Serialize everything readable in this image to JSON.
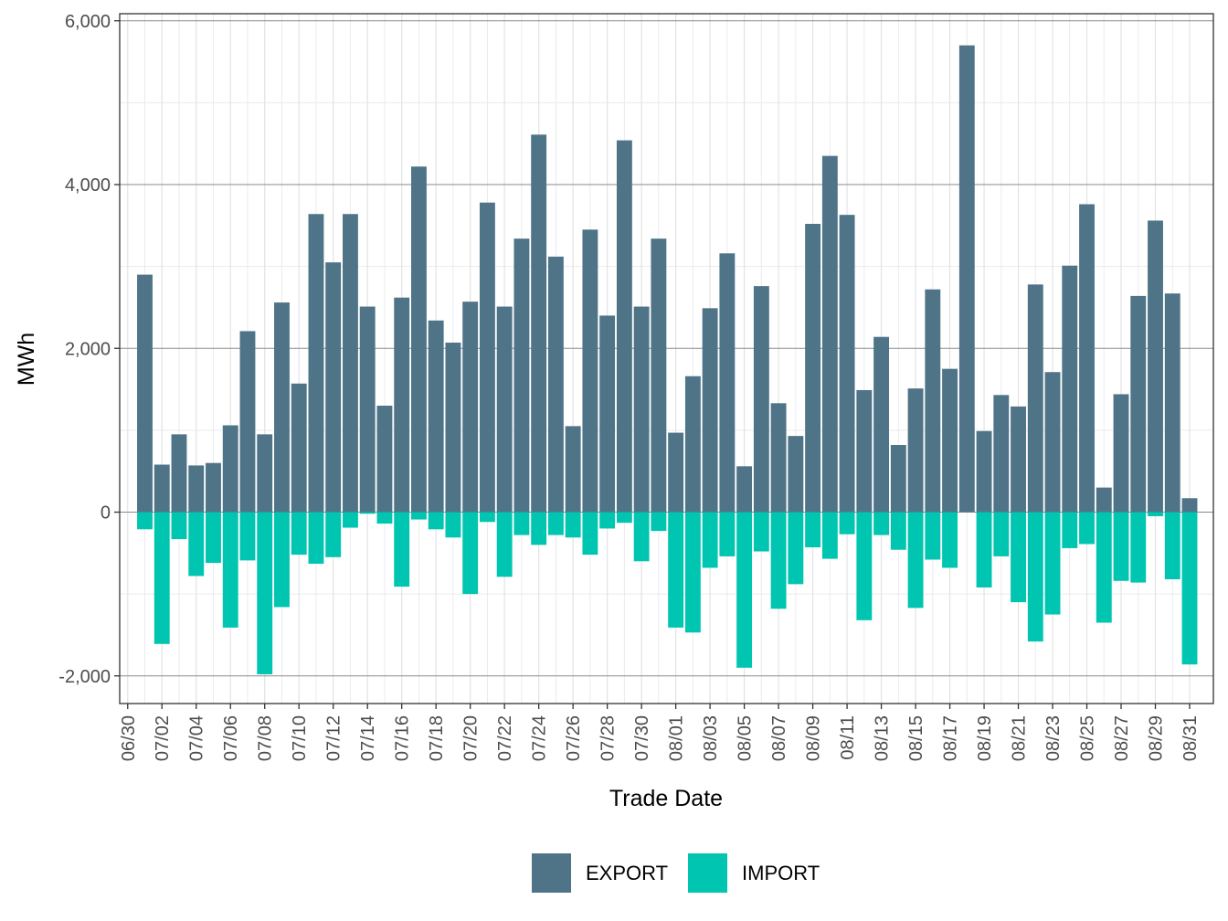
{
  "chart_data": {
    "type": "bar",
    "stacked": "diverging",
    "xlabel": "Trade Date",
    "ylabel": "MWh",
    "ylim": [
      -2350,
      6050
    ],
    "yticks": [
      -2000,
      0,
      2000,
      4000,
      6000
    ],
    "ytick_labels": [
      "-2,000",
      "0",
      "2,000",
      "4,000",
      "6,000"
    ],
    "grid": true,
    "legend_position": "bottom",
    "categories": [
      "07/01",
      "07/02",
      "07/03",
      "07/04",
      "07/05",
      "07/06",
      "07/07",
      "07/08",
      "07/09",
      "07/10",
      "07/11",
      "07/12",
      "07/13",
      "07/14",
      "07/15",
      "07/16",
      "07/17",
      "07/18",
      "07/19",
      "07/20",
      "07/21",
      "07/22",
      "07/23",
      "07/24",
      "07/25",
      "07/26",
      "07/27",
      "07/28",
      "07/29",
      "07/30",
      "07/31",
      "08/01",
      "08/02",
      "08/03",
      "08/04",
      "08/05",
      "08/06",
      "08/07",
      "08/08",
      "08/09",
      "08/10",
      "08/11",
      "08/12",
      "08/13",
      "08/14",
      "08/15",
      "08/16",
      "08/17",
      "08/18",
      "08/19",
      "08/20",
      "08/21",
      "08/22",
      "08/23",
      "08/24",
      "08/25",
      "08/26",
      "08/27",
      "08/28",
      "08/29",
      "08/30",
      "08/31"
    ],
    "x_tick_labels": [
      "06/30",
      "07/02",
      "07/04",
      "07/06",
      "07/08",
      "07/10",
      "07/12",
      "07/14",
      "07/16",
      "07/18",
      "07/20",
      "07/22",
      "07/24",
      "07/26",
      "07/28",
      "07/30",
      "08/01",
      "08/03",
      "08/05",
      "08/07",
      "08/09",
      "08/11",
      "08/13",
      "08/15",
      "08/17",
      "08/19",
      "08/21",
      "08/23",
      "08/25",
      "08/27",
      "08/29",
      "08/31"
    ],
    "series": [
      {
        "name": "EXPORT",
        "color": "#4f7488",
        "values": [
          2900,
          580,
          950,
          570,
          600,
          1060,
          2210,
          950,
          2560,
          1570,
          3640,
          3050,
          3640,
          2510,
          1300,
          2620,
          4220,
          2340,
          2070,
          2570,
          3780,
          2510,
          3340,
          4610,
          3120,
          1050,
          3450,
          2400,
          4540,
          2510,
          3340,
          970,
          1660,
          2490,
          3160,
          560,
          2760,
          1330,
          930,
          3520,
          4350,
          3630,
          1490,
          2140,
          820,
          1510,
          2720,
          1750,
          5700,
          990,
          1430,
          1290,
          2780,
          1710,
          3010,
          3760,
          300,
          1440,
          2640,
          3560,
          2670,
          170
        ]
      },
      {
        "name": "IMPORT",
        "color": "#00c5b0",
        "values": [
          -210,
          -1610,
          -330,
          -780,
          -620,
          -1410,
          -590,
          -1980,
          -1160,
          -520,
          -630,
          -550,
          -190,
          -20,
          -140,
          -910,
          -90,
          -210,
          -310,
          -1000,
          -120,
          -790,
          -280,
          -400,
          -280,
          -310,
          -520,
          -200,
          -130,
          -600,
          -230,
          -1410,
          -1470,
          -680,
          -540,
          -1900,
          -480,
          -1180,
          -880,
          -430,
          -570,
          -270,
          -1320,
          -280,
          -460,
          -1170,
          -580,
          -680,
          0,
          -920,
          -540,
          -1100,
          -1580,
          -1250,
          -440,
          -390,
          -1350,
          -840,
          -860,
          -50,
          -820,
          -1860
        ]
      }
    ]
  }
}
